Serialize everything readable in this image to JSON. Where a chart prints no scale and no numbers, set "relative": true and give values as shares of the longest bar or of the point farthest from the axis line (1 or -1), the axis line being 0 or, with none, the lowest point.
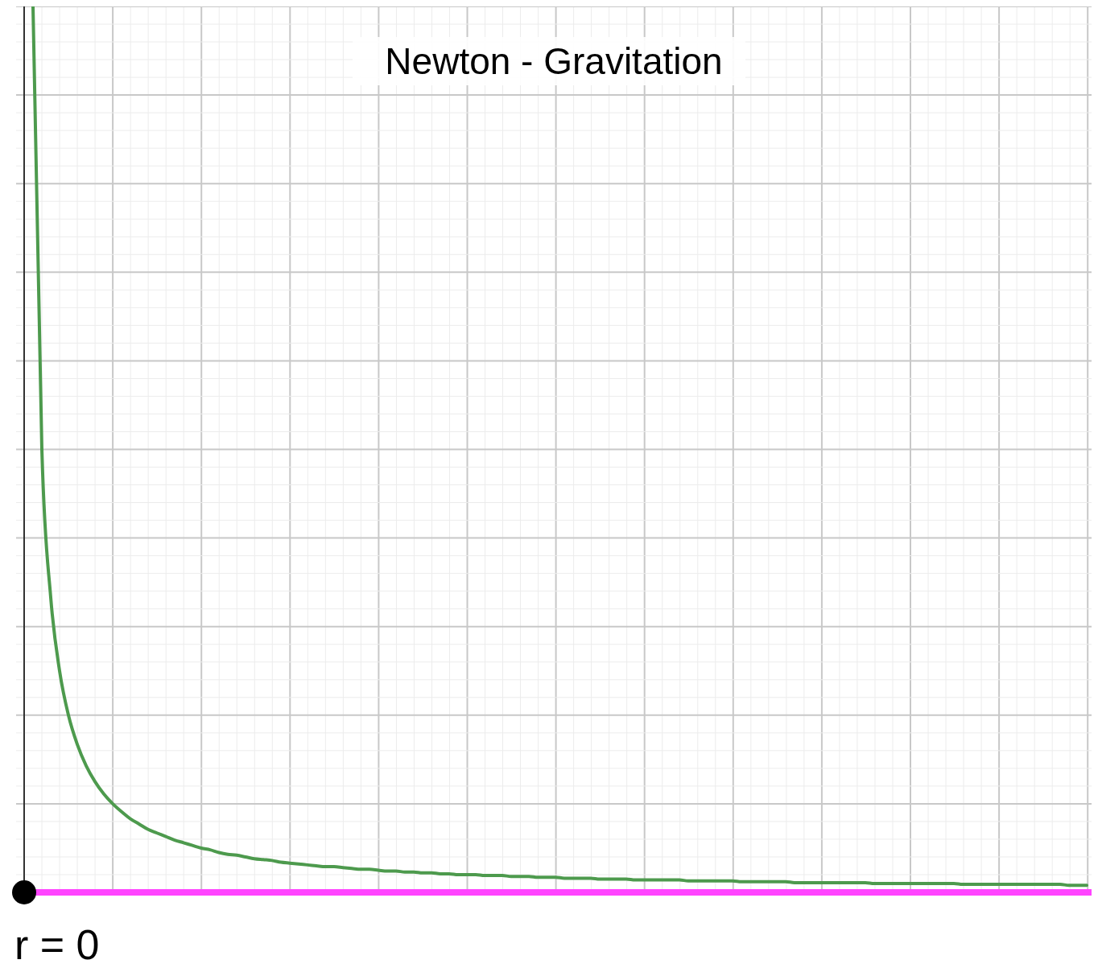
{
  "chart_data": {
    "type": "line",
    "title": "Newton - Gravitation",
    "relative": true,
    "grid": true,
    "categories": [
      null,
      null,
      null,
      null,
      null,
      null,
      null,
      null,
      null,
      null,
      null,
      null,
      null,
      null,
      null,
      null,
      null,
      null,
      null,
      null,
      null,
      null,
      null,
      null,
      null,
      null,
      null,
      null,
      null,
      null,
      null,
      null,
      null,
      null,
      null,
      null,
      null,
      null,
      null,
      null,
      null,
      null,
      null,
      null,
      null,
      null,
      null,
      null,
      null,
      null,
      null,
      null,
      null,
      null,
      null,
      null,
      null,
      null,
      null,
      null,
      null,
      null,
      null,
      null,
      null,
      null,
      null,
      null,
      null,
      null,
      null,
      null,
      null,
      null,
      null,
      null,
      null,
      null,
      null,
      null,
      null,
      null,
      null,
      null,
      null,
      null,
      null,
      null,
      null,
      null,
      null,
      null,
      null,
      null,
      null,
      null,
      null,
      null,
      null,
      null,
      null,
      null,
      null,
      null,
      null,
      null,
      null,
      null,
      null,
      null,
      null,
      null,
      null,
      null,
      null,
      null,
      null,
      null,
      null,
      null
    ],
    "series": [
      {
        "color": "#4d9a4d",
        "values": [
          1,
          0.5,
          0.333,
          0.25,
          0.2,
          0.167,
          0.143,
          0.125,
          0.111,
          0.1,
          0.091,
          0.083,
          0.077,
          0.071,
          0.067,
          0.063,
          0.059,
          0.056,
          0.053,
          0.05,
          0.048,
          0.045,
          0.043,
          0.042,
          0.04,
          0.038,
          0.037,
          0.036,
          0.034,
          0.033,
          0.032,
          0.031,
          0.03,
          0.029,
          0.029,
          0.028,
          0.027,
          0.026,
          0.026,
          0.025,
          0.024,
          0.024,
          0.023,
          0.023,
          0.022,
          0.022,
          0.021,
          0.021,
          0.02,
          0.02,
          0.02,
          0.019,
          0.019,
          0.019,
          0.018,
          0.018,
          0.018,
          0.017,
          0.017,
          0.017,
          0.016,
          0.016,
          0.016,
          0.016,
          0.015,
          0.015,
          0.015,
          0.015,
          0.014,
          0.014,
          0.014,
          0.014,
          0.014,
          0.014,
          0.013,
          0.013,
          0.013,
          0.013,
          0.013,
          0.013,
          0.012,
          0.012,
          0.012,
          0.012,
          0.012,
          0.012,
          0.011,
          0.011,
          0.011,
          0.011,
          0.011,
          0.011,
          0.011,
          0.011,
          0.011,
          0.01,
          0.01,
          0.01,
          0.01,
          0.01,
          0.01,
          0.01,
          0.01,
          0.01,
          0.01,
          0.009,
          0.009,
          0.009,
          0.009,
          0.009,
          0.009,
          0.009,
          0.009,
          0.009,
          0.009,
          0.009,
          0.009,
          0.008,
          0.008,
          0.008
        ]
      }
    ],
    "ref_lines": [
      {
        "axis": "y",
        "value": 0,
        "color": "#ff44ff"
      }
    ],
    "annotations": [
      {
        "text": "r = 0",
        "y": 0
      }
    ]
  }
}
